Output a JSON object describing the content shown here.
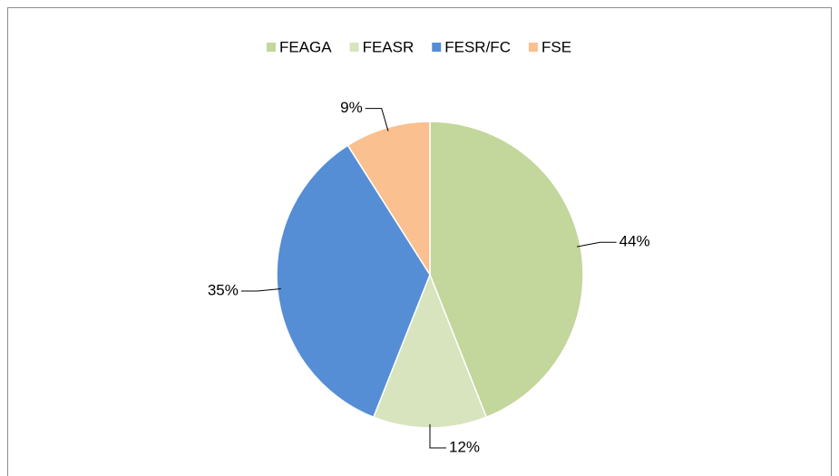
{
  "chart_data": {
    "type": "pie",
    "categories": [
      "FEAGA",
      "FEASR",
      "FESR/FC",
      "FSE"
    ],
    "values": [
      44,
      12,
      35,
      9
    ],
    "value_labels": [
      "44%",
      "12%",
      "35%",
      "9%"
    ],
    "colors": [
      "#c3d69b",
      "#d7e4bd",
      "#558ed5",
      "#fac090"
    ],
    "legend": "top"
  }
}
